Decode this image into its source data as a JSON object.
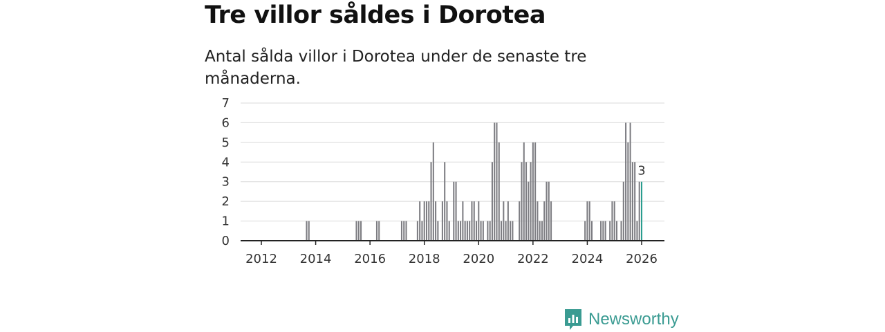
{
  "header": {
    "title": "Tre villor såldes i Dorotea",
    "subtitle": "Antal sålda villor i Dorotea under de senaste tre månaderna."
  },
  "brand": {
    "name": "Newsworthy"
  },
  "colors": {
    "bar": "#7d7d82",
    "highlight": "#2a9d8f",
    "grid": "#d9d9d9",
    "axis": "#222222",
    "brand": "#3a9b92"
  },
  "chart_data": {
    "type": "bar",
    "title": "Tre villor såldes i Dorotea",
    "subtitle": "Antal sålda villor i Dorotea under de senaste tre månaderna.",
    "xlabel": "",
    "ylabel": "",
    "ylim": [
      0,
      7
    ],
    "yticks": [
      "0",
      "1",
      "2",
      "3",
      "4",
      "5",
      "6",
      "7"
    ],
    "xticks": [
      "2012",
      "2014",
      "2016",
      "2018",
      "2020",
      "2022",
      "2024",
      "2026"
    ],
    "x_start": "2011-03",
    "grid": true,
    "highlight_label": "3",
    "values": [
      0,
      0,
      0,
      0,
      0,
      0,
      0,
      0,
      0,
      0,
      0,
      0,
      0,
      0,
      0,
      0,
      0,
      0,
      0,
      0,
      0,
      0,
      0,
      0,
      0,
      0,
      0,
      0,
      0,
      0,
      1,
      1,
      0,
      0,
      0,
      0,
      0,
      0,
      0,
      0,
      0,
      0,
      0,
      0,
      0,
      0,
      0,
      0,
      0,
      0,
      0,
      0,
      1,
      1,
      1,
      0,
      0,
      0,
      0,
      0,
      0,
      1,
      1,
      0,
      0,
      0,
      0,
      0,
      0,
      0,
      0,
      0,
      1,
      1,
      1,
      0,
      0,
      0,
      0,
      1,
      2,
      1,
      2,
      2,
      2,
      4,
      5,
      2,
      1,
      0,
      2,
      4,
      2,
      1,
      0,
      3,
      3,
      1,
      1,
      2,
      1,
      1,
      1,
      2,
      2,
      1,
      2,
      1,
      1,
      0,
      1,
      1,
      4,
      6,
      6,
      5,
      1,
      2,
      1,
      2,
      1,
      1,
      0,
      0,
      2,
      4,
      5,
      4,
      3,
      4,
      5,
      5,
      2,
      1,
      1,
      2,
      3,
      3,
      2,
      0,
      0,
      0,
      0,
      0,
      0,
      0,
      0,
      0,
      0,
      0,
      0,
      0,
      0,
      1,
      2,
      2,
      1,
      0,
      0,
      0,
      1,
      1,
      1,
      0,
      1,
      2,
      2,
      1,
      0,
      1,
      3,
      6,
      5,
      6,
      4,
      4,
      1,
      3,
      3
    ]
  }
}
